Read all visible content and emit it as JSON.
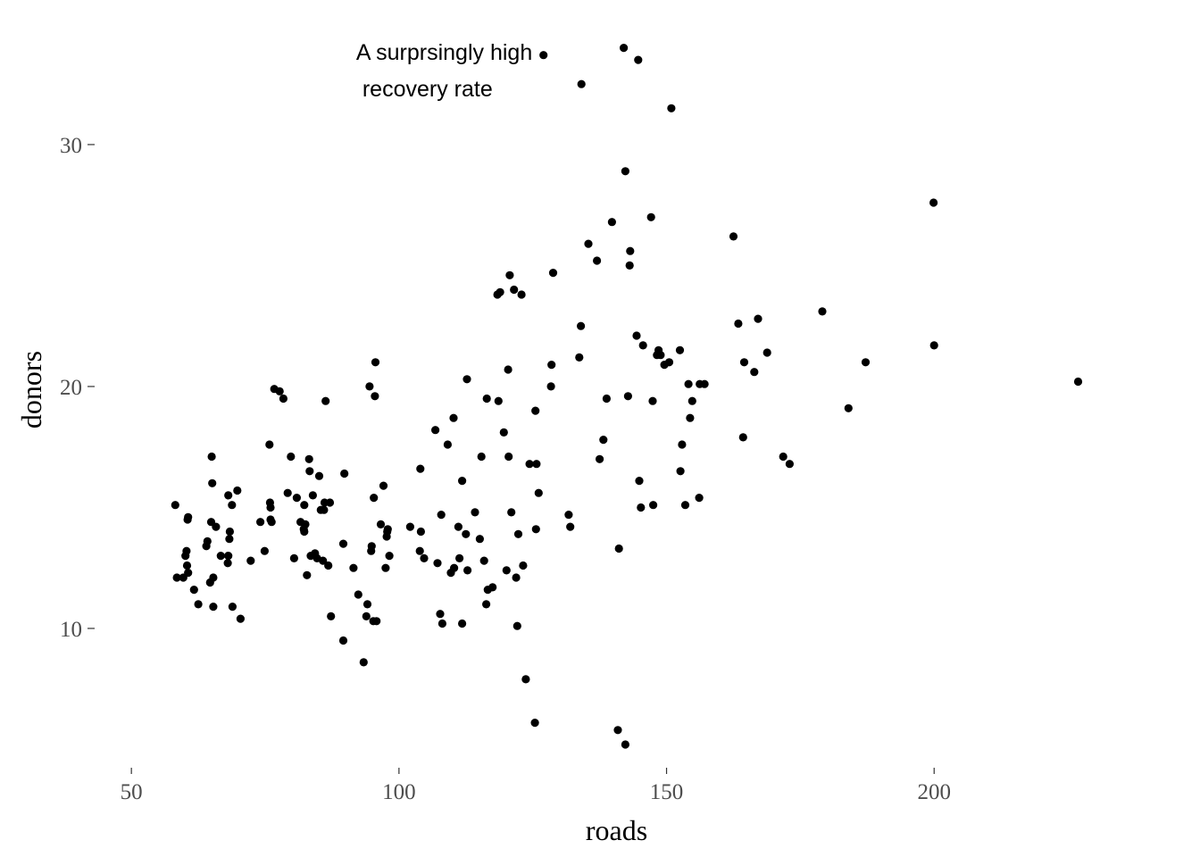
{
  "chart_data": {
    "type": "scatter",
    "title": "",
    "xlabel": "roads",
    "ylabel": "donors",
    "xlim": [
      44.3,
      237.0
    ],
    "ylim": [
      4.5,
      34.5
    ],
    "x_ticks": [
      50,
      100,
      150,
      200
    ],
    "y_ticks": [
      10,
      20,
      30
    ],
    "x_tick_labels": [
      "50",
      "100",
      "150",
      "200"
    ],
    "y_tick_labels": [
      "10",
      "20",
      "30"
    ],
    "grid": false,
    "point_color": "#000000",
    "annotation": {
      "lines": [
        "A surprsingly high",
        " recovery rate"
      ],
      "x": 92,
      "y": 33.5
    },
    "points": [
      [
        58.2,
        15.1
      ],
      [
        58.5,
        12.1
      ],
      [
        59.7,
        12.1
      ],
      [
        60.1,
        13.0
      ],
      [
        60.3,
        13.2
      ],
      [
        60.4,
        12.6
      ],
      [
        60.6,
        12.3
      ],
      [
        60.5,
        14.5
      ],
      [
        60.6,
        14.6
      ],
      [
        61.7,
        11.6
      ],
      [
        62.5,
        11.0
      ],
      [
        64.0,
        13.4
      ],
      [
        64.2,
        13.6
      ],
      [
        64.7,
        11.9
      ],
      [
        64.9,
        14.4
      ],
      [
        65.0,
        17.1
      ],
      [
        65.1,
        16.0
      ],
      [
        65.3,
        12.1
      ],
      [
        65.3,
        10.9
      ],
      [
        65.8,
        14.2
      ],
      [
        66.7,
        13.0
      ],
      [
        68.0,
        12.7
      ],
      [
        68.1,
        13.0
      ],
      [
        68.1,
        15.5
      ],
      [
        68.3,
        13.7
      ],
      [
        68.4,
        14.0
      ],
      [
        68.8,
        15.1
      ],
      [
        68.9,
        10.9
      ],
      [
        69.8,
        15.7
      ],
      [
        70.4,
        10.4
      ],
      [
        72.3,
        12.8
      ],
      [
        74.1,
        14.4
      ],
      [
        74.9,
        13.2
      ],
      [
        75.8,
        17.6
      ],
      [
        75.9,
        15.2
      ],
      [
        76.0,
        15.0
      ],
      [
        76.0,
        14.5
      ],
      [
        76.2,
        14.4
      ],
      [
        76.7,
        19.9
      ],
      [
        77.7,
        19.8
      ],
      [
        78.4,
        19.5
      ],
      [
        79.2,
        15.6
      ],
      [
        79.8,
        17.1
      ],
      [
        80.4,
        12.9
      ],
      [
        80.9,
        15.4
      ],
      [
        81.6,
        14.4
      ],
      [
        82.2,
        14.1
      ],
      [
        82.3,
        15.1
      ],
      [
        82.3,
        14.0
      ],
      [
        82.5,
        14.3
      ],
      [
        82.8,
        12.2
      ],
      [
        83.2,
        17.0
      ],
      [
        83.3,
        16.5
      ],
      [
        83.5,
        13.0
      ],
      [
        83.9,
        15.5
      ],
      [
        84.3,
        13.1
      ],
      [
        84.7,
        12.9
      ],
      [
        85.1,
        16.3
      ],
      [
        85.4,
        14.9
      ],
      [
        85.8,
        12.8
      ],
      [
        86.0,
        14.9
      ],
      [
        86.1,
        15.2
      ],
      [
        86.3,
        19.4
      ],
      [
        86.8,
        12.6
      ],
      [
        87.1,
        15.2
      ],
      [
        87.3,
        10.5
      ],
      [
        89.6,
        9.5
      ],
      [
        89.8,
        16.4
      ],
      [
        89.6,
        13.5
      ],
      [
        91.5,
        12.5
      ],
      [
        92.4,
        11.4
      ],
      [
        93.4,
        8.6
      ],
      [
        93.9,
        10.5
      ],
      [
        94.1,
        11.0
      ],
      [
        94.5,
        20.0
      ],
      [
        94.8,
        13.2
      ],
      [
        94.9,
        13.4
      ],
      [
        95.2,
        10.3
      ],
      [
        95.3,
        15.4
      ],
      [
        95.5,
        19.6
      ],
      [
        95.6,
        21.0
      ],
      [
        95.8,
        10.3
      ],
      [
        96.6,
        14.3
      ],
      [
        97.1,
        15.9
      ],
      [
        97.5,
        12.5
      ],
      [
        97.7,
        13.8
      ],
      [
        97.8,
        14.0
      ],
      [
        97.9,
        14.1
      ],
      [
        98.2,
        13.0
      ],
      [
        102.1,
        14.2
      ],
      [
        103.9,
        13.2
      ],
      [
        104.0,
        16.6
      ],
      [
        104.1,
        14.0
      ],
      [
        104.7,
        12.9
      ],
      [
        106.8,
        18.2
      ],
      [
        107.2,
        12.7
      ],
      [
        107.7,
        10.6
      ],
      [
        107.9,
        14.7
      ],
      [
        108.1,
        10.2
      ],
      [
        109.1,
        17.6
      ],
      [
        109.7,
        12.3
      ],
      [
        110.2,
        18.7
      ],
      [
        110.3,
        12.5
      ],
      [
        111.1,
        14.2
      ],
      [
        111.3,
        12.9
      ],
      [
        111.8,
        10.2
      ],
      [
        111.8,
        16.1
      ],
      [
        112.5,
        13.9
      ],
      [
        112.7,
        20.3
      ],
      [
        112.8,
        12.4
      ],
      [
        114.2,
        14.8
      ],
      [
        115.1,
        13.7
      ],
      [
        115.4,
        17.1
      ],
      [
        115.9,
        12.8
      ],
      [
        116.3,
        11.0
      ],
      [
        116.4,
        19.5
      ],
      [
        116.6,
        11.6
      ],
      [
        117.5,
        11.7
      ],
      [
        118.4,
        23.8
      ],
      [
        118.6,
        19.4
      ],
      [
        118.9,
        23.9
      ],
      [
        119.6,
        18.1
      ],
      [
        120.1,
        12.4
      ],
      [
        120.4,
        20.7
      ],
      [
        120.5,
        17.1
      ],
      [
        120.7,
        24.6
      ],
      [
        121.0,
        14.8
      ],
      [
        121.5,
        24.0
      ],
      [
        121.9,
        12.1
      ],
      [
        122.1,
        10.1
      ],
      [
        122.3,
        13.9
      ],
      [
        122.9,
        23.8
      ],
      [
        123.2,
        12.6
      ],
      [
        123.7,
        7.9
      ],
      [
        124.4,
        16.8
      ],
      [
        125.4,
        6.1
      ],
      [
        125.5,
        19.0
      ],
      [
        125.6,
        14.1
      ],
      [
        125.7,
        16.8
      ],
      [
        126.1,
        15.6
      ],
      [
        127.0,
        33.7
      ],
      [
        128.4,
        20.0
      ],
      [
        128.5,
        20.9
      ],
      [
        128.8,
        24.7
      ],
      [
        131.7,
        14.7
      ],
      [
        132.0,
        14.2
      ],
      [
        133.7,
        21.2
      ],
      [
        134.0,
        22.5
      ],
      [
        134.1,
        32.5
      ],
      [
        135.4,
        25.9
      ],
      [
        137.0,
        25.2
      ],
      [
        137.5,
        17.0
      ],
      [
        138.2,
        17.8
      ],
      [
        138.8,
        19.5
      ],
      [
        139.8,
        26.8
      ],
      [
        140.9,
        5.8
      ],
      [
        141.1,
        13.3
      ],
      [
        142.0,
        34.0
      ],
      [
        142.3,
        5.2
      ],
      [
        142.3,
        28.9
      ],
      [
        142.8,
        19.6
      ],
      [
        143.1,
        25.0
      ],
      [
        143.2,
        25.6
      ],
      [
        144.4,
        22.1
      ],
      [
        144.7,
        33.5
      ],
      [
        144.9,
        16.1
      ],
      [
        145.2,
        15.0
      ],
      [
        145.6,
        21.7
      ],
      [
        147.1,
        27.0
      ],
      [
        147.4,
        19.4
      ],
      [
        147.5,
        15.1
      ],
      [
        148.2,
        21.3
      ],
      [
        148.5,
        21.5
      ],
      [
        148.9,
        21.3
      ],
      [
        149.6,
        20.9
      ],
      [
        150.5,
        21.0
      ],
      [
        150.9,
        31.5
      ],
      [
        152.5,
        21.5
      ],
      [
        152.6,
        16.5
      ],
      [
        152.9,
        17.6
      ],
      [
        153.5,
        15.1
      ],
      [
        154.1,
        20.1
      ],
      [
        154.4,
        18.7
      ],
      [
        154.8,
        19.4
      ],
      [
        156.1,
        15.4
      ],
      [
        156.2,
        20.1
      ],
      [
        157.1,
        20.1
      ],
      [
        162.5,
        26.2
      ],
      [
        163.4,
        22.6
      ],
      [
        164.3,
        17.9
      ],
      [
        164.5,
        21.0
      ],
      [
        166.4,
        20.6
      ],
      [
        167.1,
        22.8
      ],
      [
        168.8,
        21.4
      ],
      [
        171.8,
        17.1
      ],
      [
        173.0,
        16.8
      ],
      [
        179.1,
        23.1
      ],
      [
        184.0,
        19.1
      ],
      [
        187.2,
        21.0
      ],
      [
        199.9,
        27.6
      ],
      [
        200.0,
        21.7
      ],
      [
        226.9,
        20.2
      ]
    ]
  }
}
